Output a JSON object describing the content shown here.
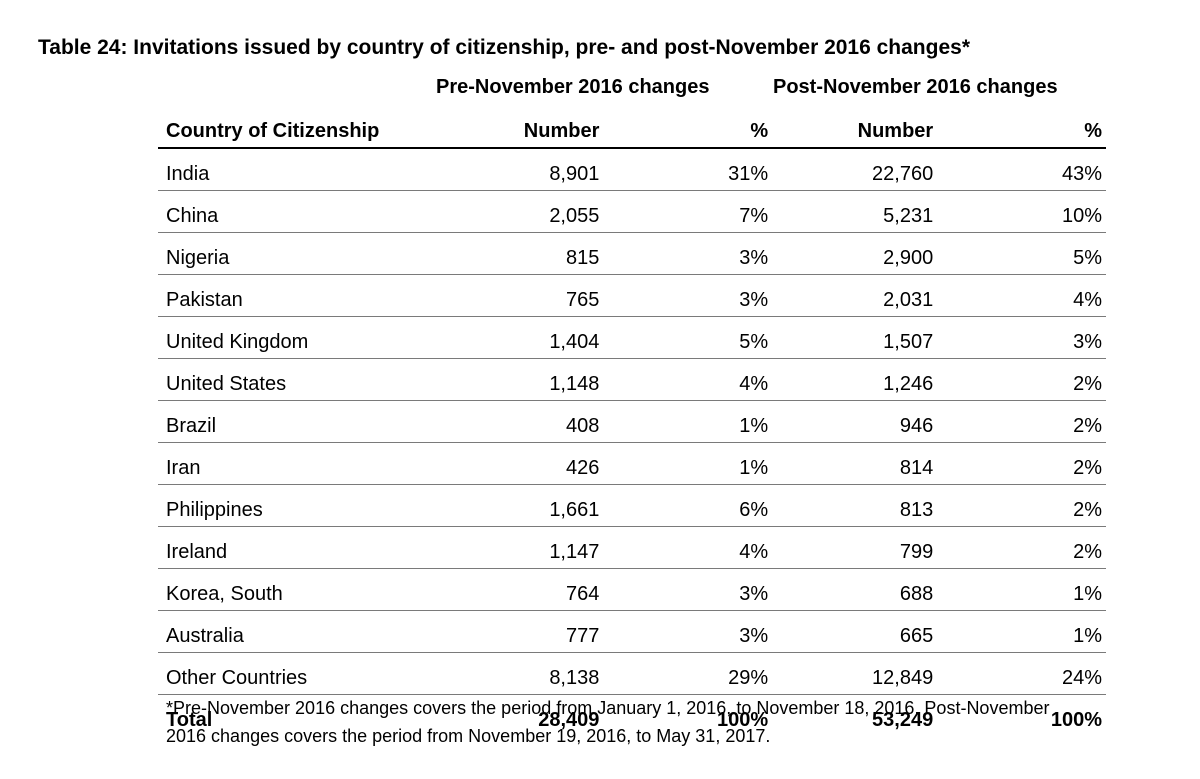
{
  "title": "Table 24: Invitations issued by country of citizenship, pre- and post-November 2016 changes*",
  "group_headers": {
    "pre": "Pre-November 2016 changes",
    "post": "Post-November 2016 changes"
  },
  "columns": {
    "country": "Country of Citizenship",
    "pre_number": "Number",
    "pre_pct": "%",
    "post_number": "Number",
    "post_pct": "%"
  },
  "rows": [
    {
      "country": "India",
      "pre_number": "8,901",
      "pre_pct": "31%",
      "post_number": "22,760",
      "post_pct": "43%"
    },
    {
      "country": "China",
      "pre_number": "2,055",
      "pre_pct": "7%",
      "post_number": "5,231",
      "post_pct": "10%"
    },
    {
      "country": "Nigeria",
      "pre_number": "815",
      "pre_pct": "3%",
      "post_number": "2,900",
      "post_pct": "5%"
    },
    {
      "country": "Pakistan",
      "pre_number": "765",
      "pre_pct": "3%",
      "post_number": "2,031",
      "post_pct": "4%"
    },
    {
      "country": "United Kingdom",
      "pre_number": "1,404",
      "pre_pct": "5%",
      "post_number": "1,507",
      "post_pct": "3%"
    },
    {
      "country": "United States",
      "pre_number": "1,148",
      "pre_pct": "4%",
      "post_number": "1,246",
      "post_pct": "2%"
    },
    {
      "country": "Brazil",
      "pre_number": "408",
      "pre_pct": "1%",
      "post_number": "946",
      "post_pct": "2%"
    },
    {
      "country": "Iran",
      "pre_number": "426",
      "pre_pct": "1%",
      "post_number": "814",
      "post_pct": "2%"
    },
    {
      "country": "Philippines",
      "pre_number": "1,661",
      "pre_pct": "6%",
      "post_number": "813",
      "post_pct": "2%"
    },
    {
      "country": "Ireland",
      "pre_number": "1,147",
      "pre_pct": "4%",
      "post_number": "799",
      "post_pct": "2%"
    },
    {
      "country": "Korea, South",
      "pre_number": "764",
      "pre_pct": "3%",
      "post_number": "688",
      "post_pct": "1%"
    },
    {
      "country": "Australia",
      "pre_number": "777",
      "pre_pct": "3%",
      "post_number": "665",
      "post_pct": "1%"
    },
    {
      "country": "Other Countries",
      "pre_number": "8,138",
      "pre_pct": "29%",
      "post_number": "12,849",
      "post_pct": "24%"
    }
  ],
  "total": {
    "country": "Total",
    "pre_number": "28,409",
    "pre_pct": "100%",
    "post_number": "53,249",
    "post_pct": "100%"
  },
  "footnote": "*Pre-November 2016 changes covers the period from January 1, 2016, to November 18, 2016. Post-November 2016 changes covers the period from November 19, 2016, to May 31, 2017."
}
